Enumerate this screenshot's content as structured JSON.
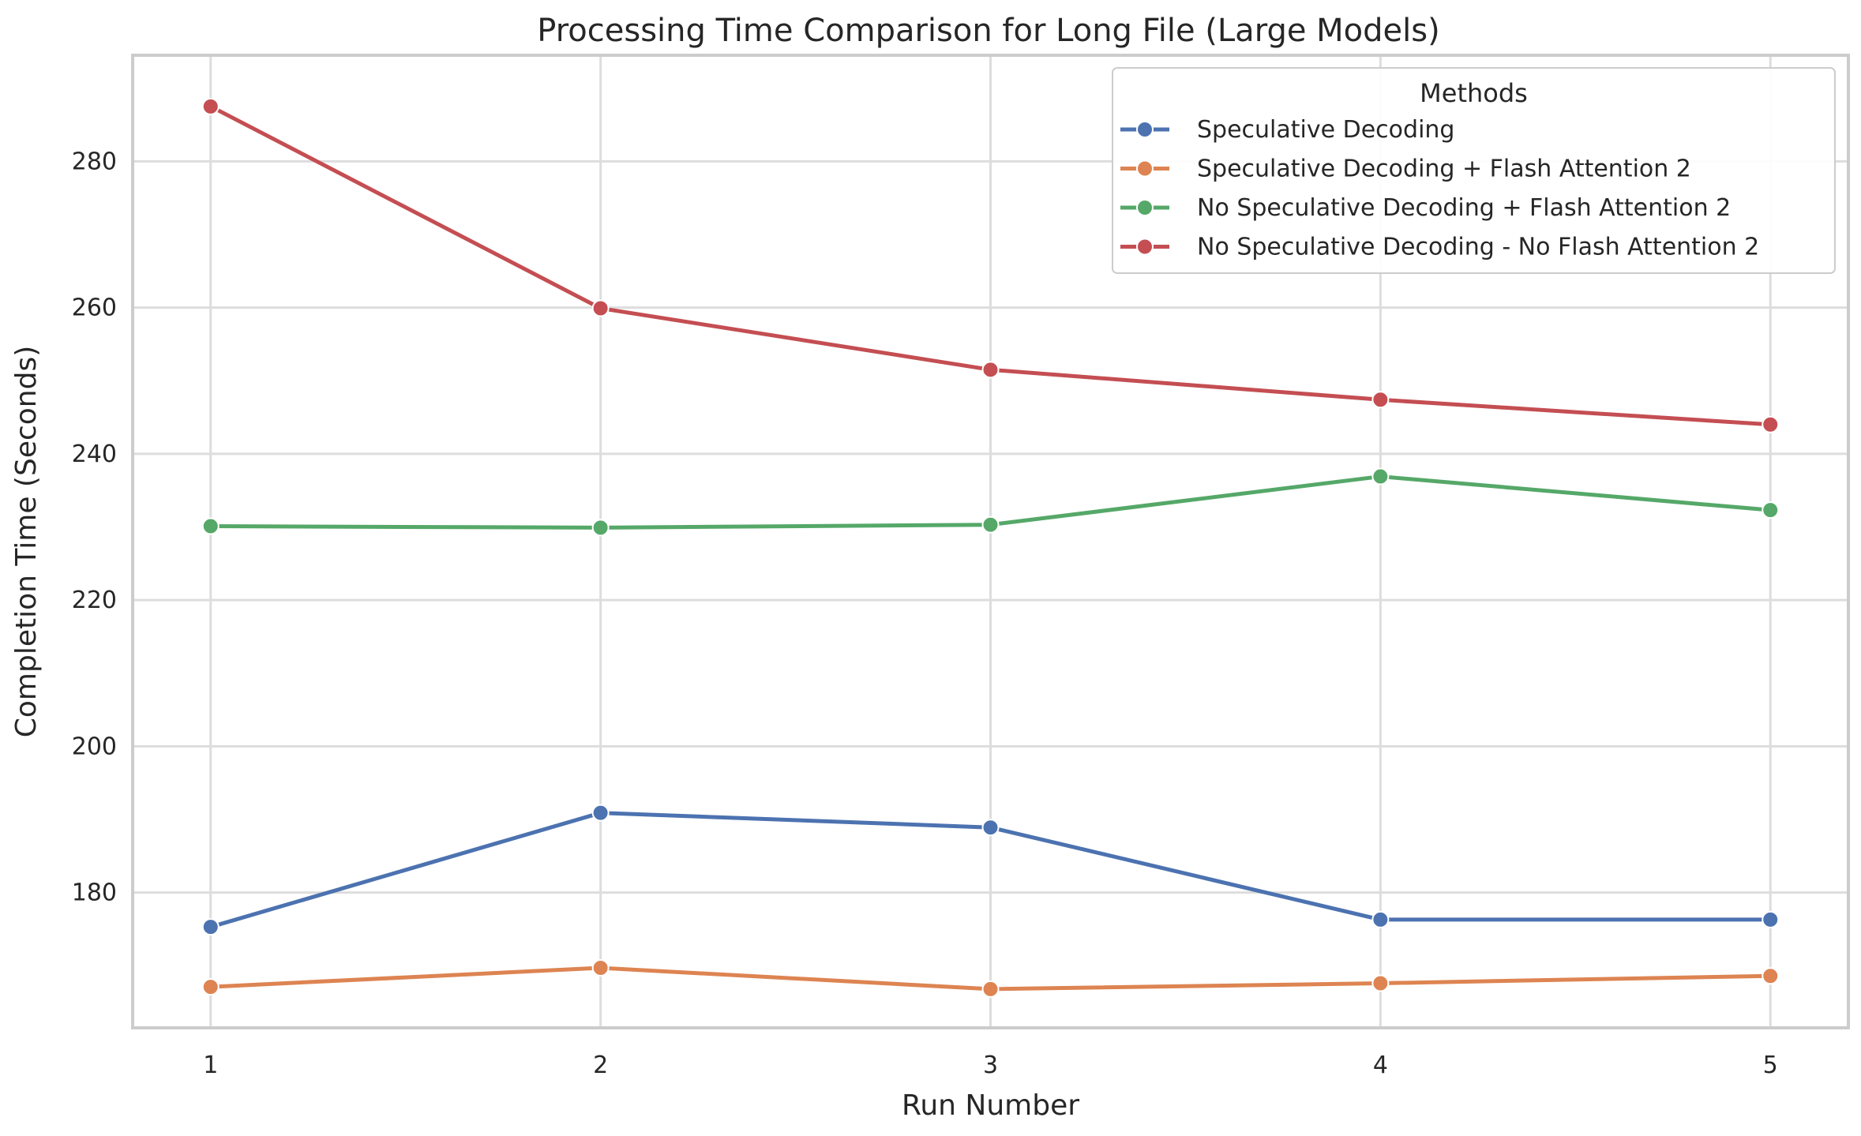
{
  "chart_data": {
    "type": "line",
    "title": "Processing Time Comparison for Long File (Large Models)",
    "xlabel": "Run Number",
    "ylabel": "Completion Time (Seconds)",
    "x": [
      1,
      2,
      3,
      4,
      5
    ],
    "xlim": [
      0.8,
      5.2
    ],
    "ylim": [
      161.5,
      294.5
    ],
    "xticks": [
      "1",
      "2",
      "3",
      "4",
      "5"
    ],
    "yticks": [
      180,
      200,
      220,
      240,
      260,
      280
    ],
    "grid": true,
    "legend": {
      "title": "Methods",
      "placement": "top-right"
    },
    "series": [
      {
        "name": "Speculative Decoding",
        "color": "#4c72b0",
        "values": [
          175.3,
          190.9,
          188.9,
          176.3,
          176.3
        ]
      },
      {
        "name": "Speculative Decoding + Flash Attention 2",
        "color": "#dd8452",
        "values": [
          167.1,
          169.7,
          166.8,
          167.6,
          168.6
        ]
      },
      {
        "name": "No Speculative Decoding + Flash Attention 2",
        "color": "#55a868",
        "values": [
          230.1,
          229.9,
          230.3,
          236.9,
          232.3
        ]
      },
      {
        "name": "No Speculative Decoding - No Flash Attention 2",
        "color": "#c44e52",
        "values": [
          287.5,
          259.9,
          251.5,
          247.4,
          244.0
        ]
      }
    ]
  }
}
